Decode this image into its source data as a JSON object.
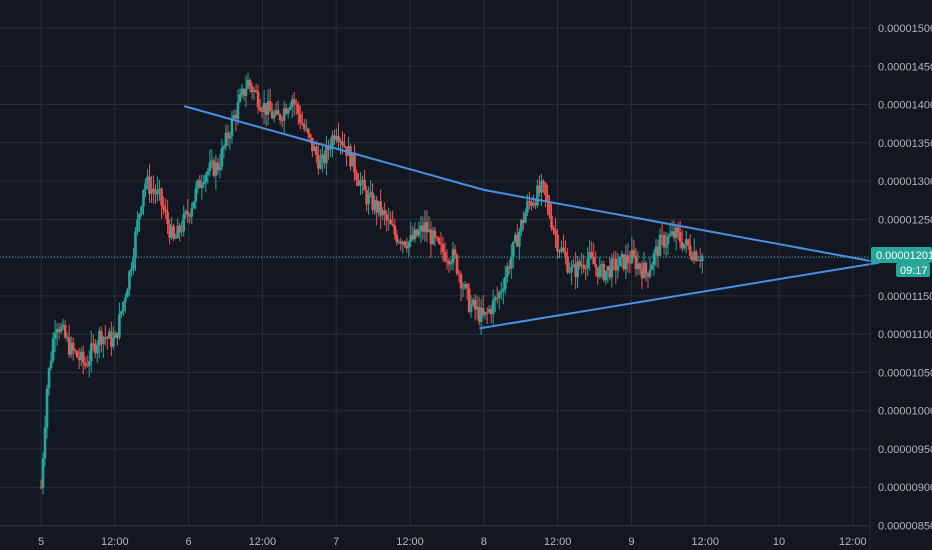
{
  "colors": {
    "background": "#131722",
    "grid": "#2a2e39",
    "axis_text": "#b2b5be",
    "up": "#26a69a",
    "down": "#ef5350",
    "trendline": "#4a90e2",
    "price_line": "#26a69a"
  },
  "chart_data": {
    "type": "candlestick",
    "x_ticks": [
      "5",
      "12:00",
      "6",
      "12:00",
      "7",
      "12:00",
      "8",
      "12:00",
      "9",
      "12:00",
      "10",
      "12:00"
    ],
    "y_ticks": [
      "0.00001500",
      "0.00001450",
      "0.00001400",
      "0.00001350",
      "0.00001300",
      "0.00001250",
      "0.00001200",
      "0.00001150",
      "0.00001100",
      "0.00001050",
      "0.00001000",
      "0.00000950",
      "0.00000900",
      "0.00000850"
    ],
    "ylim": [
      8.5e-06,
      1.5e-05
    ],
    "grid": true,
    "current_price": "0.00001201",
    "countdown": "09:17",
    "trendlines": [
      {
        "points": [
          [
            3.97,
            1.398e-05
          ],
          [
            6.0,
            1.2885e-05
          ],
          [
            8.68,
            1.1935e-05
          ]
        ]
      },
      {
        "points": [
          [
            5.97,
            1.1075e-05
          ],
          [
            8.68,
            1.1935e-05
          ]
        ]
      }
    ],
    "close_path": [
      [
        3.0,
        9e-06
      ],
      [
        3.04,
        1.03e-05
      ],
      [
        3.1,
        1.12e-05
      ],
      [
        3.2,
        1.08e-05
      ],
      [
        3.3,
        1.06e-05
      ],
      [
        3.4,
        1.1e-05
      ],
      [
        3.5,
        1.09e-05
      ],
      [
        3.6,
        1.18e-05
      ],
      [
        3.7,
        1.3e-05
      ],
      [
        3.8,
        1.28e-05
      ],
      [
        3.9,
        1.22e-05
      ],
      [
        4.0,
        1.26e-05
      ],
      [
        4.1,
        1.31e-05
      ],
      [
        4.2,
        1.32e-05
      ],
      [
        4.3,
        1.38e-05
      ],
      [
        4.4,
        1.43e-05
      ],
      [
        4.5,
        1.4e-05
      ],
      [
        4.6,
        1.38e-05
      ],
      [
        4.7,
        1.41e-05
      ],
      [
        4.8,
        1.36e-05
      ],
      [
        4.9,
        1.32e-05
      ],
      [
        5.0,
        1.37e-05
      ],
      [
        5.1,
        1.33e-05
      ],
      [
        5.2,
        1.28e-05
      ],
      [
        5.3,
        1.26e-05
      ],
      [
        5.4,
        1.23e-05
      ],
      [
        5.5,
        1.22e-05
      ],
      [
        5.6,
        1.24e-05
      ],
      [
        5.7,
        1.21e-05
      ],
      [
        5.8,
        1.2e-05
      ],
      [
        5.9,
        1.14e-05
      ],
      [
        6.0,
        1.12e-05
      ],
      [
        6.1,
        1.15e-05
      ],
      [
        6.2,
        1.21e-05
      ],
      [
        6.3,
        1.27e-05
      ],
      [
        6.4,
        1.29e-05
      ],
      [
        6.5,
        1.22e-05
      ],
      [
        6.6,
        1.18e-05
      ],
      [
        6.7,
        1.2e-05
      ],
      [
        6.8,
        1.18e-05
      ],
      [
        6.9,
        1.19e-05
      ],
      [
        7.0,
        1.2e-05
      ],
      [
        7.1,
        1.18e-05
      ],
      [
        7.2,
        1.22e-05
      ],
      [
        7.3,
        1.23e-05
      ],
      [
        7.4,
        1.21e-05
      ],
      [
        7.5,
        1.2e-05
      ]
    ]
  }
}
